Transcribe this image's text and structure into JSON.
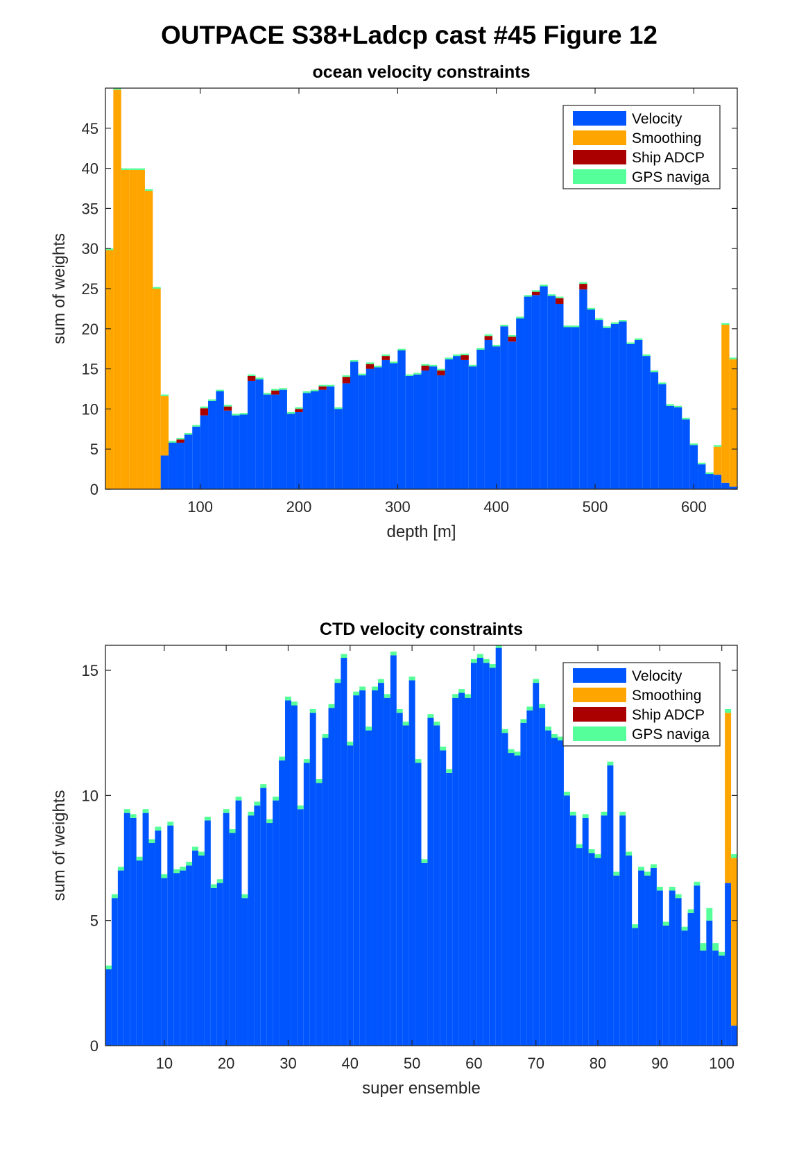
{
  "figure_title": "OUTPACE S38+Ladcp cast #45  Figure 12",
  "colors": {
    "velocity": "#0055ff",
    "smoothing": "#ffa500",
    "ship_adcp": "#aa0000",
    "gps": "#55ff99"
  },
  "chart_data": [
    {
      "type": "bar",
      "stacked": true,
      "title": "ocean velocity constraints",
      "xlabel": "depth [m]",
      "ylabel": "sum of weights",
      "xlim": [
        4,
        644
      ],
      "ylim": [
        0,
        50
      ],
      "xticks": [
        100,
        200,
        300,
        400,
        500,
        600
      ],
      "yticks": [
        0,
        5,
        10,
        15,
        20,
        25,
        30,
        35,
        40,
        45
      ],
      "bin_width": 8,
      "legend_position": "top-right",
      "series": [
        {
          "name": "Velocity",
          "color": "#0055ff",
          "x": [
            8,
            16,
            24,
            32,
            40,
            48,
            56,
            64,
            72,
            80,
            88,
            96,
            104,
            112,
            120,
            128,
            136,
            144,
            152,
            160,
            168,
            176,
            184,
            192,
            200,
            208,
            216,
            224,
            232,
            240,
            248,
            256,
            264,
            272,
            280,
            288,
            296,
            304,
            312,
            320,
            328,
            336,
            344,
            352,
            360,
            368,
            376,
            384,
            392,
            400,
            408,
            416,
            424,
            432,
            440,
            448,
            456,
            464,
            472,
            480,
            488,
            496,
            504,
            512,
            520,
            528,
            536,
            544,
            552,
            560,
            568,
            576,
            584,
            592,
            600,
            608,
            616,
            624,
            632,
            640
          ],
          "values": [
            0,
            0,
            0,
            0,
            0,
            0,
            0,
            4.2,
            5.8,
            5.8,
            6.8,
            7.8,
            9.2,
            11,
            12.2,
            9.8,
            9.2,
            9.3,
            13.5,
            13.7,
            11.8,
            11.8,
            12.4,
            9.4,
            9.6,
            12,
            12.2,
            12.4,
            12.8,
            10,
            13.2,
            15.9,
            14.2,
            15,
            15.2,
            16.1,
            15.7,
            17.3,
            14.1,
            14.3,
            14.8,
            15.3,
            14.2,
            16.2,
            16.6,
            16.1,
            15.3,
            17.4,
            18.6,
            17.8,
            20.3,
            18.4,
            21.3,
            24,
            24.2,
            25.3,
            24.1,
            23.1,
            20.2,
            20.2,
            24.9,
            22.4,
            21.1,
            20.1,
            20.6,
            20.9,
            18.1,
            18.6,
            16.6,
            14.6,
            13.1,
            10.4,
            10.2,
            8.7,
            5.5,
            3.1,
            1.9,
            1.8,
            0.8,
            0.3
          ]
        },
        {
          "name": "Smoothing",
          "color": "#ffa500",
          "values": [
            29.8,
            49.8,
            39.8,
            39.8,
            39.8,
            37.2,
            25,
            7.4,
            0,
            0,
            0,
            0,
            0,
            0,
            0,
            0,
            0,
            0,
            0,
            0,
            0,
            0,
            0,
            0,
            0,
            0,
            0,
            0,
            0,
            0,
            0,
            0,
            0,
            0,
            0,
            0,
            0,
            0,
            0,
            0,
            0,
            0,
            0,
            0,
            0,
            0,
            0,
            0,
            0,
            0,
            0,
            0,
            0,
            0,
            0,
            0,
            0,
            0,
            0,
            0,
            0,
            0,
            0,
            0,
            0,
            0,
            0,
            0,
            0,
            0,
            0,
            0,
            0,
            0,
            0,
            0,
            0,
            3.5,
            19.7,
            15.9
          ]
        },
        {
          "name": "Ship ADCP",
          "color": "#aa0000",
          "values": [
            0,
            0,
            0,
            0,
            0,
            0,
            0,
            0,
            0,
            0.4,
            0,
            0,
            0.9,
            0,
            0,
            0.5,
            0,
            0,
            0.6,
            0,
            0,
            0.5,
            0,
            0,
            0.4,
            0,
            0,
            0.4,
            0,
            0,
            0.8,
            0,
            0,
            0.6,
            0,
            0.5,
            0,
            0,
            0,
            0,
            0.6,
            0,
            0.6,
            0,
            0,
            0.6,
            0,
            0,
            0.5,
            0,
            0,
            0.6,
            0,
            0,
            0.4,
            0,
            0,
            0.7,
            0,
            0,
            0.7,
            0,
            0,
            0,
            0,
            0,
            0,
            0,
            0,
            0,
            0,
            0,
            0,
            0,
            0,
            0,
            0,
            0,
            0,
            0
          ]
        },
        {
          "name": "GPS naviga",
          "color": "#55ff99",
          "values": [
            0.2,
            0.2,
            0.2,
            0.2,
            0.2,
            0.2,
            0.2,
            0.2,
            0.2,
            0.2,
            0.2,
            0.2,
            0.2,
            0.2,
            0.2,
            0.2,
            0.2,
            0.2,
            0.2,
            0.2,
            0.2,
            0.2,
            0.2,
            0.2,
            0.2,
            0.2,
            0.2,
            0.2,
            0.2,
            0.2,
            0.2,
            0.2,
            0.2,
            0.2,
            0.2,
            0.2,
            0.2,
            0.2,
            0.2,
            0.2,
            0.2,
            0.2,
            0.2,
            0.2,
            0.2,
            0.2,
            0.2,
            0.2,
            0.2,
            0.2,
            0.2,
            0.2,
            0.2,
            0.2,
            0.2,
            0.2,
            0.2,
            0.2,
            0.2,
            0.2,
            0.2,
            0.2,
            0.2,
            0.2,
            0.2,
            0.2,
            0.2,
            0.2,
            0.2,
            0.2,
            0.2,
            0.2,
            0.2,
            0.2,
            0.2,
            0.2,
            0.2,
            0.2,
            0.2,
            0.2
          ]
        }
      ]
    },
    {
      "type": "bar",
      "stacked": true,
      "title": "CTD velocity constraints",
      "xlabel": "super ensemble",
      "ylabel": "sum of weights",
      "xlim": [
        0.5,
        102.5
      ],
      "ylim": [
        0,
        16
      ],
      "xticks": [
        10,
        20,
        30,
        40,
        50,
        60,
        70,
        80,
        90,
        100
      ],
      "yticks": [
        0,
        5,
        10,
        15
      ],
      "bin_width": 1,
      "legend_position": "top-right",
      "series": [
        {
          "name": "Velocity",
          "color": "#0055ff",
          "x": [
            1,
            2,
            3,
            4,
            5,
            6,
            7,
            8,
            9,
            10,
            11,
            12,
            13,
            14,
            15,
            16,
            17,
            18,
            19,
            20,
            21,
            22,
            23,
            24,
            25,
            26,
            27,
            28,
            29,
            30,
            31,
            32,
            33,
            34,
            35,
            36,
            37,
            38,
            39,
            40,
            41,
            42,
            43,
            44,
            45,
            46,
            47,
            48,
            49,
            50,
            51,
            52,
            53,
            54,
            55,
            56,
            57,
            58,
            59,
            60,
            61,
            62,
            63,
            64,
            65,
            66,
            67,
            68,
            69,
            70,
            71,
            72,
            73,
            74,
            75,
            76,
            77,
            78,
            79,
            80,
            81,
            82,
            83,
            84,
            85,
            86,
            87,
            88,
            89,
            90,
            91,
            92,
            93,
            94,
            95,
            96,
            97,
            98,
            99,
            100,
            101,
            102
          ],
          "values": [
            3.05,
            5.9,
            7.0,
            9.3,
            9.1,
            7.4,
            9.3,
            8.1,
            8.6,
            6.7,
            8.8,
            6.9,
            7.0,
            7.2,
            7.8,
            7.6,
            9.0,
            6.3,
            6.5,
            9.3,
            8.5,
            9.8,
            5.9,
            9.2,
            9.6,
            10.3,
            8.9,
            9.8,
            11.4,
            13.8,
            13.6,
            9.45,
            11.3,
            13.3,
            10.5,
            12.3,
            13.5,
            14.5,
            15.5,
            12.0,
            14.0,
            14.2,
            12.6,
            14.2,
            14.5,
            13.9,
            15.6,
            13.3,
            12.8,
            14.6,
            11.3,
            7.3,
            13.1,
            12.8,
            11.8,
            10.9,
            13.9,
            14.1,
            13.9,
            15.3,
            15.5,
            15.3,
            15.1,
            15.9,
            12.5,
            11.7,
            11.6,
            12.9,
            13.4,
            14.5,
            13.5,
            12.6,
            12.3,
            12.2,
            10.0,
            9.2,
            7.9,
            9.1,
            7.7,
            7.5,
            9.2,
            11.2,
            6.8,
            9.2,
            7.6,
            4.7,
            7.0,
            6.8,
            7.1,
            6.2,
            4.8,
            6.2,
            5.9,
            4.6,
            5.3,
            6.4,
            3.8,
            5.0,
            3.8,
            3.6,
            6.5,
            0.8
          ]
        },
        {
          "name": "Smoothing",
          "color": "#ffa500",
          "values": [
            0,
            0,
            0,
            0,
            0,
            0,
            0,
            0,
            0,
            0,
            0,
            0,
            0,
            0,
            0,
            0,
            0,
            0,
            0,
            0,
            0,
            0,
            0,
            0,
            0,
            0,
            0,
            0,
            0,
            0,
            0,
            0,
            0,
            0,
            0,
            0,
            0,
            0,
            0,
            0,
            0,
            0,
            0,
            0,
            0,
            0,
            0,
            0,
            0,
            0,
            0,
            0,
            0,
            0,
            0,
            0,
            0,
            0,
            0,
            0,
            0,
            0,
            0,
            0,
            0,
            0,
            0,
            0,
            0,
            0,
            0,
            0,
            0,
            0,
            0,
            0,
            0,
            0,
            0,
            0,
            0,
            0,
            0,
            0,
            0,
            0,
            0,
            0,
            0,
            0,
            0,
            0,
            0,
            0,
            0,
            0,
            0,
            0,
            0,
            0,
            6.8,
            6.7
          ]
        },
        {
          "name": "Ship ADCP",
          "color": "#aa0000",
          "values": [
            0,
            0,
            0,
            0,
            0,
            0,
            0,
            0,
            0,
            0,
            0,
            0,
            0,
            0,
            0,
            0,
            0,
            0,
            0,
            0,
            0,
            0,
            0,
            0,
            0,
            0,
            0,
            0,
            0,
            0,
            0,
            0,
            0,
            0,
            0,
            0,
            0,
            0,
            0,
            0,
            0,
            0,
            0,
            0,
            0,
            0,
            0,
            0,
            0,
            0,
            0,
            0,
            0,
            0,
            0,
            0,
            0,
            0,
            0,
            0,
            0,
            0,
            0,
            0,
            0,
            0,
            0,
            0,
            0,
            0,
            0,
            0,
            0,
            0,
            0,
            0,
            0,
            0,
            0,
            0,
            0,
            0,
            0,
            0,
            0,
            0,
            0,
            0,
            0,
            0,
            0,
            0,
            0,
            0,
            0,
            0,
            0,
            0,
            0,
            0,
            0,
            0
          ]
        },
        {
          "name": "GPS naviga",
          "color": "#55ff99",
          "values": [
            0.15,
            0.15,
            0.15,
            0.15,
            0.15,
            0.15,
            0.15,
            0.15,
            0.15,
            0.15,
            0.15,
            0.15,
            0.15,
            0.15,
            0.15,
            0.15,
            0.15,
            0.15,
            0.15,
            0.15,
            0.15,
            0.15,
            0.15,
            0.15,
            0.15,
            0.15,
            0.15,
            0.15,
            0.15,
            0.15,
            0.15,
            0.15,
            0.15,
            0.15,
            0.15,
            0.15,
            0.15,
            0.15,
            0.15,
            0.15,
            0.15,
            0.15,
            0.15,
            0.15,
            0.15,
            0.15,
            0.15,
            0.15,
            0.15,
            0.15,
            0.15,
            0.15,
            0.15,
            0.15,
            0.15,
            0.15,
            0.15,
            0.15,
            0.15,
            0.15,
            0.15,
            0.15,
            0.15,
            0.15,
            0.15,
            0.15,
            0.15,
            0.15,
            0.15,
            0.15,
            0.15,
            0.15,
            0.15,
            0.15,
            0.15,
            0.15,
            0.15,
            0.15,
            0.15,
            0.15,
            0.15,
            0.15,
            0.15,
            0.15,
            0.15,
            0.15,
            0.15,
            0.15,
            0.15,
            0.15,
            0.15,
            0.15,
            0.15,
            0.15,
            0.15,
            0.15,
            0.3,
            0.5,
            0.3,
            0.15,
            0.15,
            0.15
          ]
        }
      ]
    }
  ]
}
